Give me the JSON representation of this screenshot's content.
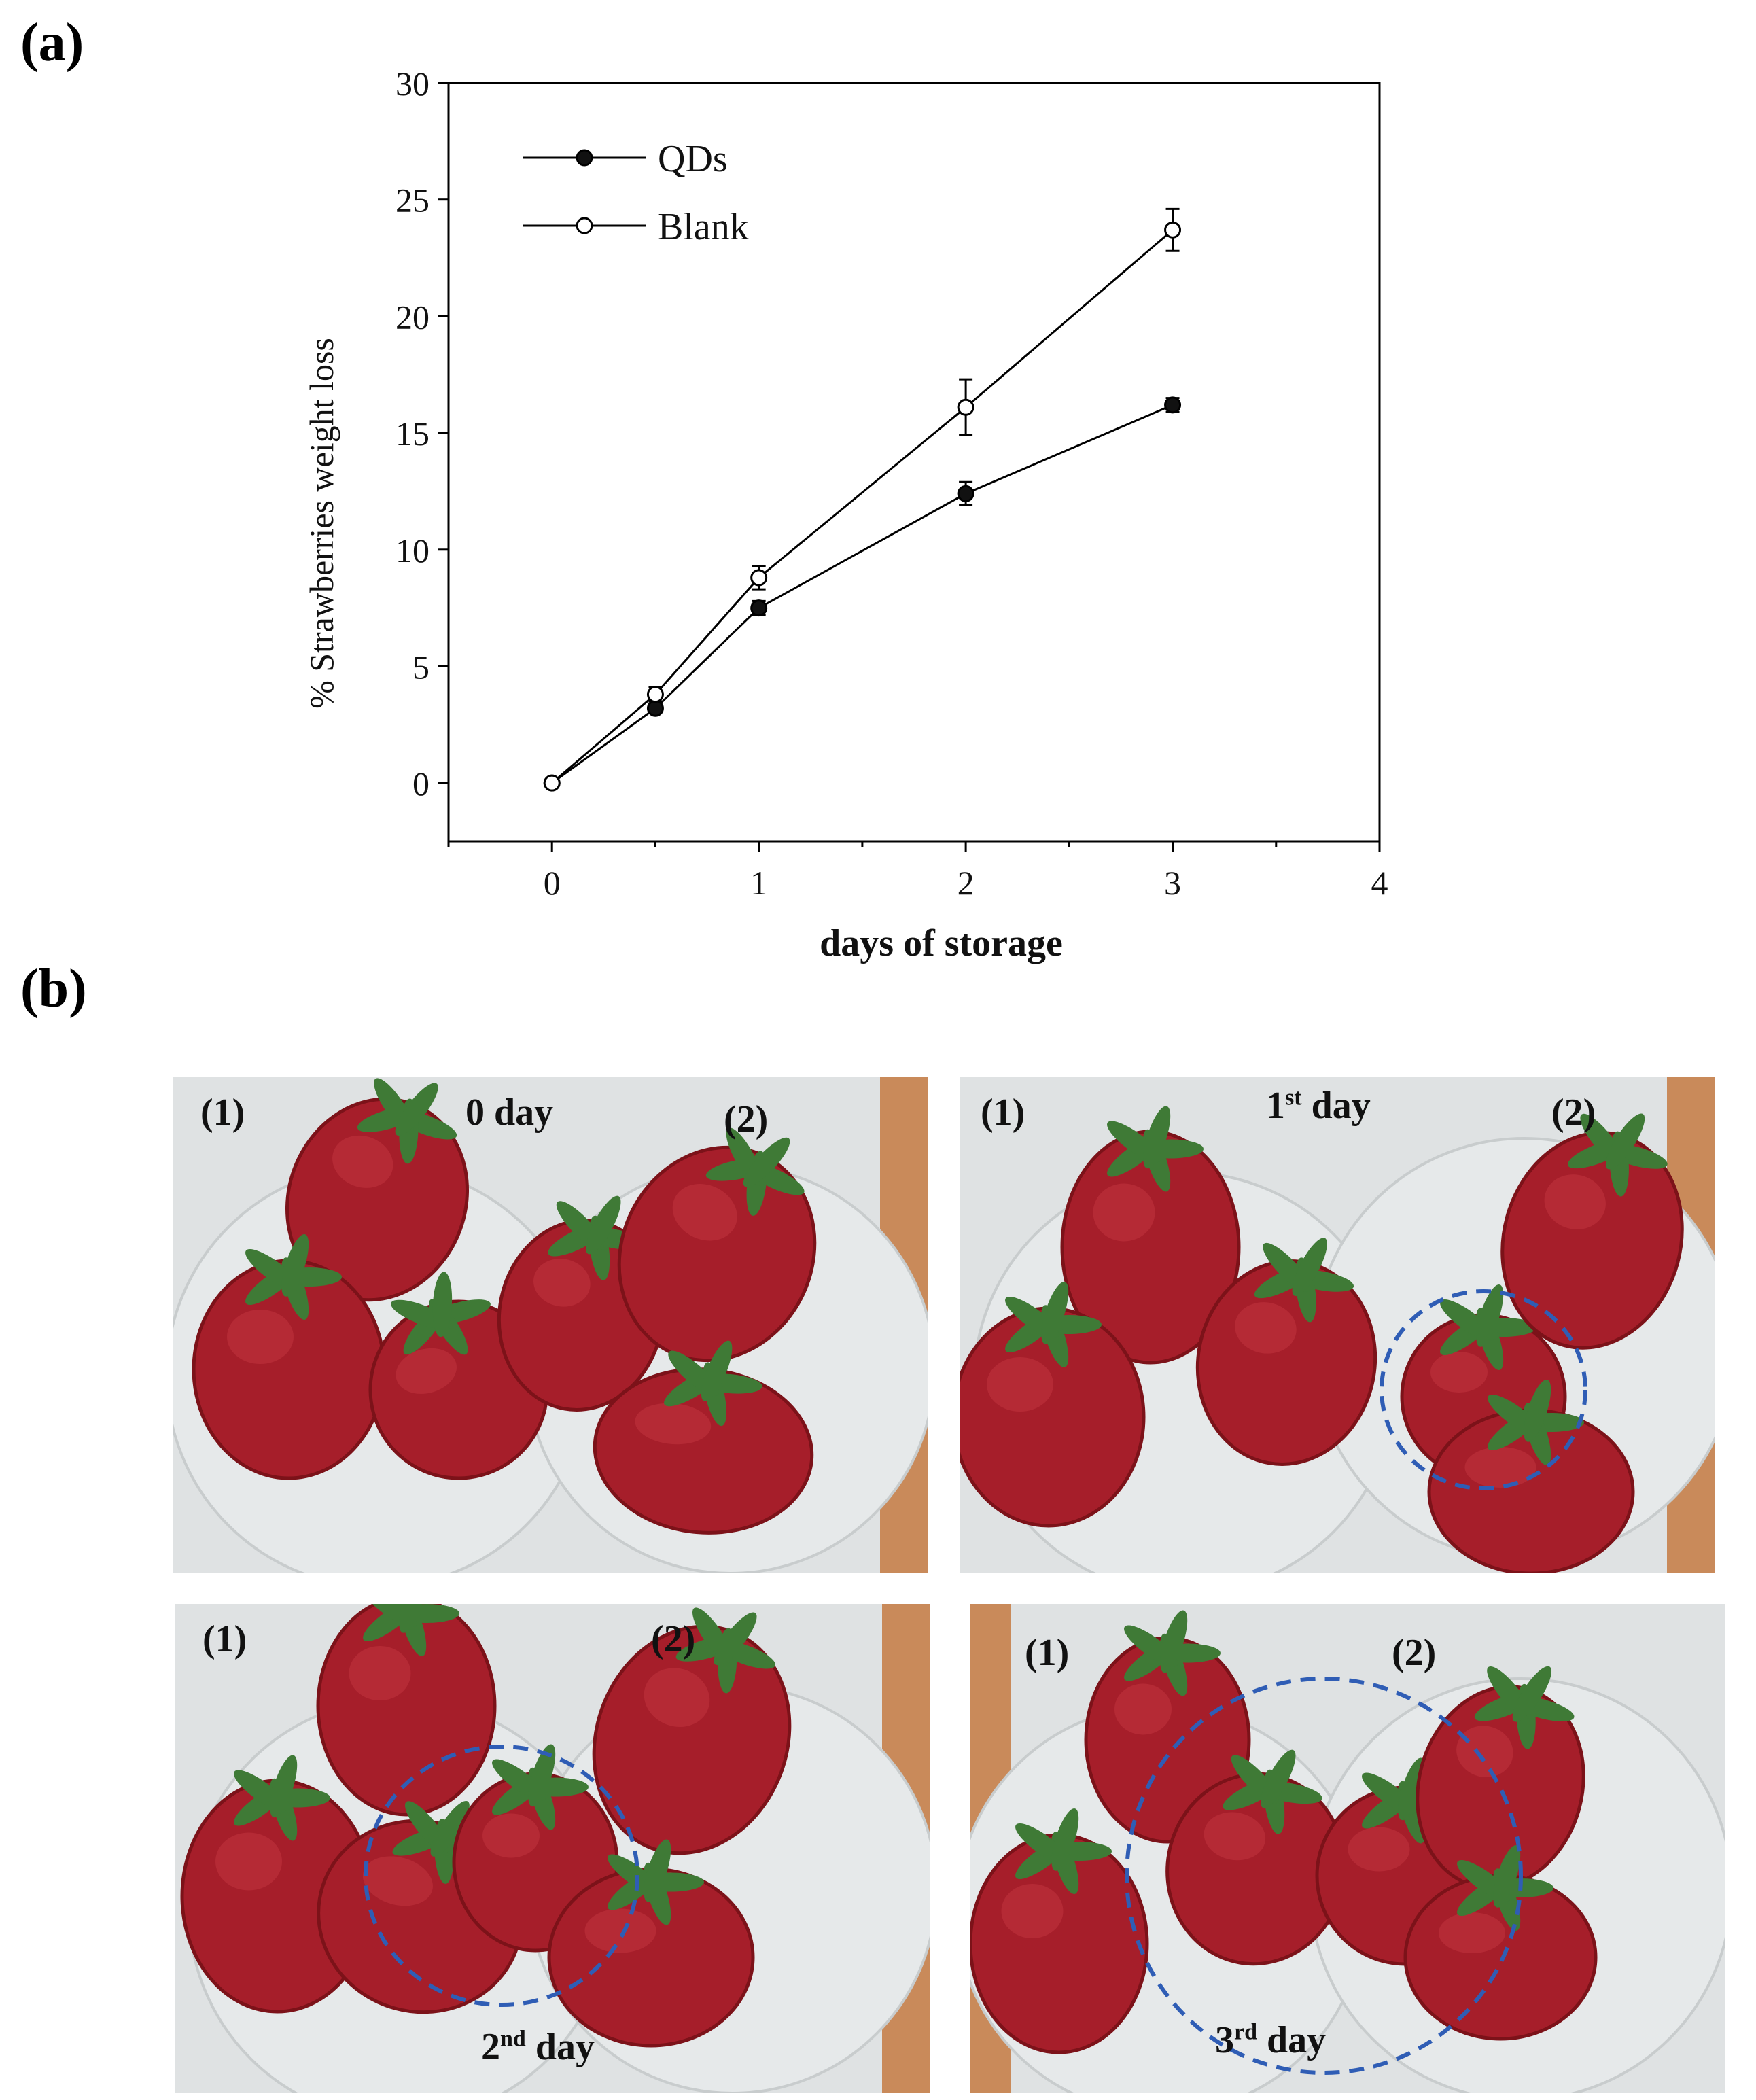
{
  "panel_a_label": "(a)",
  "panel_b_label": "(b)",
  "chart_data": {
    "type": "line",
    "xlabel": "days of storage",
    "ylabel": "% Strawberries weight loss",
    "xlim": [
      -0.5,
      4
    ],
    "ylim": [
      -2.5,
      30
    ],
    "xticks": [
      0,
      1,
      2,
      3,
      4
    ],
    "yticks": [
      0,
      5,
      10,
      15,
      20,
      25,
      30
    ],
    "legend_position": "top-left",
    "series": [
      {
        "name": "QDs",
        "marker": "filled-circle",
        "x": [
          0,
          0.5,
          1,
          2,
          3
        ],
        "y": [
          0,
          3.2,
          7.5,
          12.4,
          16.2
        ],
        "err": [
          0,
          0.2,
          0.3,
          0.5,
          0.3
        ]
      },
      {
        "name": "Blank",
        "marker": "open-circle",
        "x": [
          0,
          0.5,
          1,
          2,
          3
        ],
        "y": [
          0,
          3.8,
          8.8,
          16.1,
          23.7
        ],
        "err": [
          0,
          0.3,
          0.5,
          1.2,
          0.9
        ]
      }
    ]
  },
  "photos": [
    {
      "sample1": "(1)",
      "sample2": "(2)",
      "day_num": "0",
      "day_sup": "",
      "day_word": " day"
    },
    {
      "sample1": "(1)",
      "sample2": "(2)",
      "day_num": "1",
      "day_sup": "st",
      "day_word": " day"
    },
    {
      "sample1": "(1)",
      "sample2": "(2)",
      "day_num": "2",
      "day_sup": "nd",
      "day_word": " day"
    },
    {
      "sample1": "(1)",
      "sample2": "(2)",
      "day_num": "3",
      "day_sup": "rd",
      "day_word": " day"
    }
  ],
  "colors": {
    "line": "#000000",
    "photo_bg": "#dfe2e3",
    "wood": "#c98a5a",
    "strawberry": "#a61e2a",
    "strawberry_dark": "#7c1219",
    "leaf": "#3f7a36",
    "dashed_circle": "#2f5db5"
  }
}
